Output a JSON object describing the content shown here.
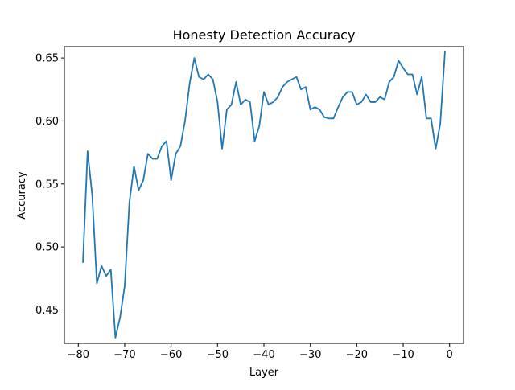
{
  "chart_data": {
    "type": "line",
    "title": "Honesty Detection Accuracy",
    "xlabel": "Layer",
    "ylabel": "Accuracy",
    "xlim": [
      -83,
      3
    ],
    "ylim": [
      0.4235,
      0.659
    ],
    "xticks": [
      -80,
      -70,
      -60,
      -50,
      -40,
      -30,
      -20,
      -10,
      0
    ],
    "xtick_labels": [
      "−80",
      "−70",
      "−60",
      "−50",
      "−40",
      "−30",
      "−20",
      "−10",
      "0"
    ],
    "yticks": [
      0.45,
      0.5,
      0.55,
      0.6,
      0.65
    ],
    "ytick_labels": [
      "0.45",
      "0.50",
      "0.55",
      "0.60",
      "0.65"
    ],
    "grid": false,
    "legend": "none",
    "line_color": "#1f77b4",
    "series": [
      {
        "x": [
          -79,
          -78,
          -77,
          -76,
          -75,
          -74,
          -73,
          -72,
          -71,
          -70,
          -69,
          -68,
          -67,
          -66,
          -65,
          -64,
          -63,
          -62,
          -61,
          -60,
          -59,
          -58,
          -57,
          -56,
          -55,
          -54,
          -53,
          -52,
          -51,
          -50,
          -49,
          -48,
          -47,
          -46,
          -45,
          -44,
          -43,
          -42,
          -41,
          -40,
          -39,
          -38,
          -37,
          -36,
          -35,
          -34,
          -33,
          -32,
          -31,
          -30,
          -29,
          -28,
          -27,
          -26,
          -25,
          -24,
          -23,
          -22,
          -21,
          -20,
          -19,
          -18,
          -17,
          -16,
          -15,
          -14,
          -13,
          -12,
          -11,
          -10,
          -9,
          -8,
          -7,
          -6,
          -5,
          -4,
          -3,
          -2,
          -1
        ],
        "y": [
          0.488,
          0.576,
          0.541,
          0.471,
          0.485,
          0.477,
          0.482,
          0.428,
          0.444,
          0.469,
          0.535,
          0.564,
          0.545,
          0.553,
          0.574,
          0.57,
          0.57,
          0.58,
          0.584,
          0.553,
          0.574,
          0.58,
          0.6,
          0.63,
          0.65,
          0.635,
          0.633,
          0.637,
          0.633,
          0.615,
          0.578,
          0.609,
          0.613,
          0.631,
          0.613,
          0.617,
          0.615,
          0.584,
          0.596,
          0.623,
          0.613,
          0.615,
          0.619,
          0.627,
          0.631,
          0.633,
          0.635,
          0.625,
          0.627,
          0.609,
          0.611,
          0.609,
          0.603,
          0.602,
          0.602,
          0.611,
          0.619,
          0.623,
          0.623,
          0.613,
          0.615,
          0.621,
          0.615,
          0.615,
          0.619,
          0.617,
          0.631,
          0.635,
          0.648,
          0.642,
          0.637,
          0.637,
          0.621,
          0.635,
          0.602,
          0.602,
          0.578,
          0.598,
          0.655
        ]
      }
    ]
  }
}
